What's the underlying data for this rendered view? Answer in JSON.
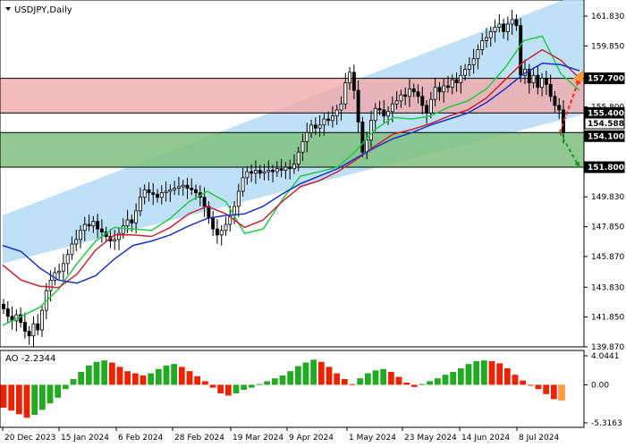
{
  "window": {
    "symbol_title": "USDJPY,Daily",
    "ao_label": "AO -2.2344"
  },
  "colors": {
    "background": "#ffffff",
    "channel": "#b3dcf7",
    "resistance_zone": "#f2a5a5",
    "support_zone": "#7fbf7f",
    "ma_fast": "#22cc44",
    "ma_mid": "#cc2233",
    "ma_slow": "#1a33cc",
    "ao_up": "#22aa22",
    "ao_down": "#ee2200",
    "arrow_up": "#ff2222",
    "arrow_down": "#229922",
    "orange_marker": "#ff9933",
    "candles": "#000000"
  },
  "chart_data": {
    "type": "candlestick",
    "symbol": "USDJPY",
    "timeframe": "Daily",
    "ylim": [
      139.87,
      162.9
    ],
    "price_ticks": [
      "161.830",
      "159.850",
      "155.800",
      "151.810",
      "149.830",
      "147.850",
      "145.870",
      "143.830",
      "141.850",
      "139.870"
    ],
    "time_ticks": [
      "20 Dec 2023",
      "15 Jan 2024",
      "6 Feb 2024",
      "28 Feb 2024",
      "19 Mar 2024",
      "9 Apr 2024",
      "1 May 2024",
      "23 May 2024",
      "14 Jun 2024",
      "8 Jul 2024"
    ],
    "closes": [
      142.4,
      141.9,
      141.6,
      142.0,
      141.5,
      140.9,
      140.6,
      141.4,
      141.0,
      142.3,
      143.6,
      144.3,
      144.8,
      144.9,
      145.4,
      146.0,
      146.7,
      147.0,
      147.6,
      148.0,
      147.9,
      148.2,
      147.7,
      147.5,
      147.2,
      146.9,
      147.0,
      147.4,
      147.9,
      148.3,
      148.1,
      148.9,
      149.8,
      150.3,
      150.1,
      150.0,
      149.8,
      150.1,
      150.2,
      150.3,
      150.4,
      150.5,
      150.6,
      150.4,
      150.3,
      150.1,
      149.8,
      149.2,
      148.4,
      147.7,
      147.3,
      147.6,
      148.0,
      148.6,
      149.2,
      150.2,
      151.1,
      151.5,
      151.4,
      151.6,
      151.4,
      151.5,
      151.6,
      151.5,
      151.7,
      151.6,
      151.8,
      151.7,
      152.0,
      152.8,
      153.5,
      154.1,
      154.6,
      154.4,
      154.6,
      155.0,
      154.9,
      155.2,
      155.6,
      156.0,
      157.4,
      158.1,
      156.9,
      154.8,
      152.8,
      153.6,
      154.9,
      155.7,
      155.6,
      155.2,
      155.5,
      156.0,
      156.2,
      156.6,
      156.5,
      157.0,
      156.8,
      156.5,
      155.9,
      155.4,
      156.3,
      157.1,
      156.8,
      157.2,
      157.1,
      157.6,
      157.4,
      157.9,
      158.3,
      158.6,
      159.0,
      159.6,
      160.2,
      160.4,
      160.8,
      161.1,
      161.3,
      160.8,
      161.3,
      161.6,
      161.2,
      157.9,
      158.3,
      157.4,
      157.9,
      157.1,
      157.7,
      157.3,
      156.5,
      155.9,
      155.6,
      154.1
    ],
    "series": [
      {
        "name": "MA fast",
        "color": "#22cc44",
        "values": [
          141.3,
          141.9,
          142.5,
          143.7,
          145.4,
          146.9,
          147.8,
          147.7,
          147.6,
          148.4,
          149.5,
          150.2,
          149.5,
          147.4,
          147.7,
          149.6,
          151.2,
          151.5,
          151.8,
          152.9,
          154.3,
          155.1,
          155.0,
          155.2,
          155.8,
          156.2,
          157.0,
          158.4,
          160.2,
          160.5,
          158.0,
          156.9
        ]
      },
      {
        "name": "MA mid",
        "color": "#cc2233",
        "values": [
          145.3,
          144.3,
          143.9,
          143.8,
          144.7,
          146.3,
          147.3,
          147.3,
          147.2,
          147.8,
          148.7,
          149.2,
          148.7,
          147.8,
          148.3,
          149.5,
          150.5,
          150.9,
          151.5,
          152.3,
          153.2,
          154.0,
          154.3,
          154.7,
          155.2,
          155.6,
          156.4,
          157.6,
          158.8,
          159.6,
          158.9,
          157.7
        ]
      },
      {
        "name": "MA slow",
        "color": "#1a33cc",
        "values": [
          146.6,
          146.2,
          145.1,
          144.3,
          144.1,
          144.6,
          145.7,
          146.6,
          146.9,
          147.3,
          147.9,
          148.4,
          148.6,
          148.7,
          149.2,
          150.0,
          150.7,
          151.2,
          151.7,
          152.4,
          153.1,
          153.7,
          154.1,
          154.6,
          155.0,
          155.4,
          156.1,
          157.0,
          158.0,
          158.7,
          158.6,
          158.2
        ]
      }
    ],
    "channel": {
      "lower_start": 145.4,
      "lower_end": 155.3,
      "upper_start": 148.6,
      "upper_end": 163.4
    },
    "zones": [
      {
        "name": "resistance",
        "from": 155.4,
        "to": 157.7
      },
      {
        "name": "support",
        "from": 151.8,
        "to": 154.1
      }
    ],
    "price_tags": [
      {
        "value": "157.700",
        "style": "black"
      },
      {
        "value": "155.400",
        "style": "black"
      },
      {
        "value": "154.588",
        "style": "white"
      },
      {
        "value": "154.100",
        "style": "black"
      },
      {
        "value": "151.800",
        "style": "black"
      }
    ],
    "arrows": [
      {
        "direction": "up",
        "from": 154.1,
        "to": 157.7
      },
      {
        "direction": "down",
        "from": 154.1,
        "to": 151.8
      }
    ],
    "ao": {
      "label": "AO -2.2344",
      "ticks": [
        "4.0441",
        "0.00",
        "-5.3163"
      ],
      "ylim": [
        -5.3163,
        4.0441
      ],
      "values": [
        -3.2,
        -3.6,
        -4.1,
        -4.6,
        -4.2,
        -3.5,
        -2.6,
        -1.8,
        -0.6,
        0.8,
        1.8,
        2.7,
        3.2,
        3.4,
        3.1,
        2.5,
        1.9,
        1.6,
        1.3,
        1.6,
        2.2,
        2.7,
        2.9,
        2.5,
        1.9,
        1.2,
        0.5,
        -0.4,
        -1.2,
        -1.5,
        -1.2,
        -0.7,
        -0.4,
        0.1,
        0.5,
        0.9,
        1.3,
        1.9,
        2.6,
        3.1,
        3.5,
        3.2,
        2.5,
        1.6,
        0.8,
        0.1,
        0.9,
        1.6,
        2.0,
        2.2,
        1.8,
        1.1,
        0.3,
        -0.3,
        0.1,
        0.5,
        0.9,
        1.4,
        1.8,
        2.3,
        2.9,
        3.3,
        3.4,
        3.3,
        3.0,
        2.3,
        1.4,
        0.6,
        0.0,
        -0.6,
        -1.3,
        -2.0,
        -2.2
      ]
    }
  }
}
